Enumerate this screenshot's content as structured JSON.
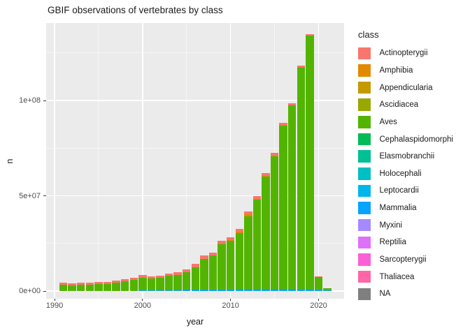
{
  "title": "GBIF observations of vertebrates by class",
  "axes": {
    "x": {
      "label": "year",
      "tick_labels": [
        "1990",
        "2000",
        "2010",
        "2020"
      ],
      "tick_years": [
        1990,
        2000,
        2010,
        2020
      ],
      "minor_years": [
        1995,
        2005,
        2015
      ]
    },
    "y": {
      "label": "n",
      "tick_labels": [
        "0e+00",
        "5e+07",
        "1e+08"
      ],
      "tick_values_millions": [
        0,
        50,
        100
      ],
      "minor_values_millions": [
        25,
        75,
        125
      ]
    }
  },
  "legend": {
    "title": "class",
    "items": [
      {
        "label": "Actinopterygii",
        "color": "#F8766D"
      },
      {
        "label": "Amphibia",
        "color": "#E38900"
      },
      {
        "label": "Appendicularia",
        "color": "#C49A00"
      },
      {
        "label": "Ascidiacea",
        "color": "#99A800"
      },
      {
        "label": "Aves",
        "color": "#53B400"
      },
      {
        "label": "Cephalaspidomorphi",
        "color": "#00BC56"
      },
      {
        "label": "Elasmobranchii",
        "color": "#00C094"
      },
      {
        "label": "Holocephali",
        "color": "#00BFC4"
      },
      {
        "label": "Leptocardii",
        "color": "#00B6EB"
      },
      {
        "label": "Mammalia",
        "color": "#06A4FF"
      },
      {
        "label": "Myxini",
        "color": "#A58AFF"
      },
      {
        "label": "Reptilia",
        "color": "#DF70F8"
      },
      {
        "label": "Sarcopterygii",
        "color": "#FB61D7"
      },
      {
        "label": "Thaliacea",
        "color": "#FF66A8"
      },
      {
        "label": "NA",
        "color": "#7F7F7F"
      }
    ]
  },
  "chart_data": {
    "type": "bar",
    "stacked": true,
    "title": "GBIF observations of vertebrates by class",
    "xlabel": "year",
    "ylabel": "n",
    "value_unit": "observations, millions (estimated from pixels)",
    "stack_order_note": "segments listed bottom-to-top within each bar; classes not listed have values too small to be visible",
    "x": [
      1991,
      1992,
      1993,
      1994,
      1995,
      1996,
      1997,
      1998,
      1999,
      2000,
      2001,
      2002,
      2003,
      2004,
      2005,
      2006,
      2007,
      2008,
      2009,
      2010,
      2011,
      2012,
      2013,
      2014,
      2015,
      2016,
      2017,
      2018,
      2019,
      2020,
      2021
    ],
    "series": [
      {
        "name": "Mammalia",
        "color": "#06A4FF",
        "values": [
          0,
          0,
          0,
          0,
          0,
          0,
          0,
          0,
          0,
          0.4,
          0.4,
          0.4,
          0.5,
          0.5,
          0.6,
          0.6,
          0.7,
          0.7,
          0.8,
          0.9,
          1.0,
          1.1,
          1.1,
          1.1,
          1.2,
          1.2,
          1.2,
          1.2,
          1.2,
          0.7,
          0.2
        ]
      },
      {
        "name": "Aves",
        "color": "#53B400",
        "values": [
          3.3,
          3.1,
          3.3,
          3.4,
          3.7,
          3.8,
          4.4,
          5.0,
          5.7,
          6.5,
          6.1,
          6.4,
          7.4,
          8.1,
          9.3,
          11.9,
          16.2,
          17.8,
          23.8,
          25.4,
          29.4,
          38.2,
          47.0,
          59.0,
          69.6,
          85.8,
          96.2,
          116.1,
          132.7,
          6.8,
          1.2
        ]
      },
      {
        "name": "Amphibia",
        "color": "#E38900",
        "values": [
          0,
          0,
          0,
          0,
          0,
          0,
          0,
          0,
          0,
          0,
          0,
          0,
          0,
          0,
          0,
          0,
          0,
          0,
          0.3,
          0.4,
          0.8,
          0.9,
          0.3,
          0.2,
          0.2,
          0.2,
          0.2,
          0.2,
          0.1,
          0,
          0
        ]
      },
      {
        "name": "Actinopterygii",
        "color": "#F8766D",
        "values": [
          1.1,
          0.9,
          1.1,
          1.0,
          1.1,
          1.0,
          1.1,
          1.2,
          1.3,
          1.5,
          1.2,
          1.2,
          1.3,
          1.3,
          1.5,
          1.8,
          1.8,
          1.8,
          1.5,
          1.5,
          1.5,
          1.7,
          1.6,
          1.5,
          1.5,
          1.1,
          0.9,
          0.8,
          0.8,
          0.2,
          0.1
        ]
      }
    ],
    "xlim": [
      1989,
      2023
    ],
    "ylim_millions": [
      0,
      141
    ],
    "grid": true,
    "legend_position": "right",
    "panel_background": "#EBEBEB"
  }
}
